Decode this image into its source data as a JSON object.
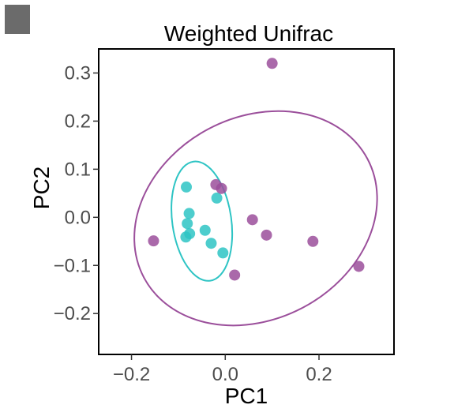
{
  "chart_data": {
    "type": "scatter",
    "title": "Weighted Unifrac",
    "xlabel": "PC1",
    "ylabel": "PC2",
    "xlim": [
      -0.27,
      0.36
    ],
    "ylim": [
      -0.285,
      0.35
    ],
    "xticks": [
      -0.2,
      0.0,
      0.2
    ],
    "xtick_labels": [
      "−0.2",
      "0.0",
      "0.2"
    ],
    "yticks": [
      0.3,
      0.2,
      0.1,
      0.0,
      -0.1,
      -0.2
    ],
    "ytick_labels": [
      "0.3",
      "0.2",
      "0.1",
      "0.0",
      "−0.1",
      "−0.2"
    ],
    "grid": false,
    "legend": "none",
    "series": [
      {
        "color": "#2ec4c4",
        "points": [
          {
            "x": -0.083,
            "y": 0.063
          },
          {
            "x": -0.077,
            "y": 0.008
          },
          {
            "x": -0.081,
            "y": -0.013
          },
          {
            "x": -0.076,
            "y": -0.034
          },
          {
            "x": -0.084,
            "y": -0.041
          },
          {
            "x": -0.043,
            "y": -0.027
          },
          {
            "x": -0.03,
            "y": -0.054
          },
          {
            "x": -0.018,
            "y": 0.04
          },
          {
            "x": -0.005,
            "y": -0.074
          }
        ],
        "ellipse": {
          "cx": -0.05,
          "cy": -0.008,
          "rx": 0.063,
          "ry": 0.125,
          "angle_deg": -8
        }
      },
      {
        "color": "#9b4f9b",
        "points": [
          {
            "x": 0.1,
            "y": 0.32
          },
          {
            "x": -0.02,
            "y": 0.068
          },
          {
            "x": -0.008,
            "y": 0.06
          },
          {
            "x": -0.153,
            "y": -0.049
          },
          {
            "x": 0.058,
            "y": -0.005
          },
          {
            "x": 0.088,
            "y": -0.037
          },
          {
            "x": 0.187,
            "y": -0.05
          },
          {
            "x": 0.02,
            "y": -0.12
          },
          {
            "x": 0.285,
            "y": -0.102
          }
        ],
        "ellipse": {
          "cx": 0.065,
          "cy": -0.002,
          "rx": 0.27,
          "ry": 0.21,
          "angle_deg": -28
        }
      }
    ]
  }
}
